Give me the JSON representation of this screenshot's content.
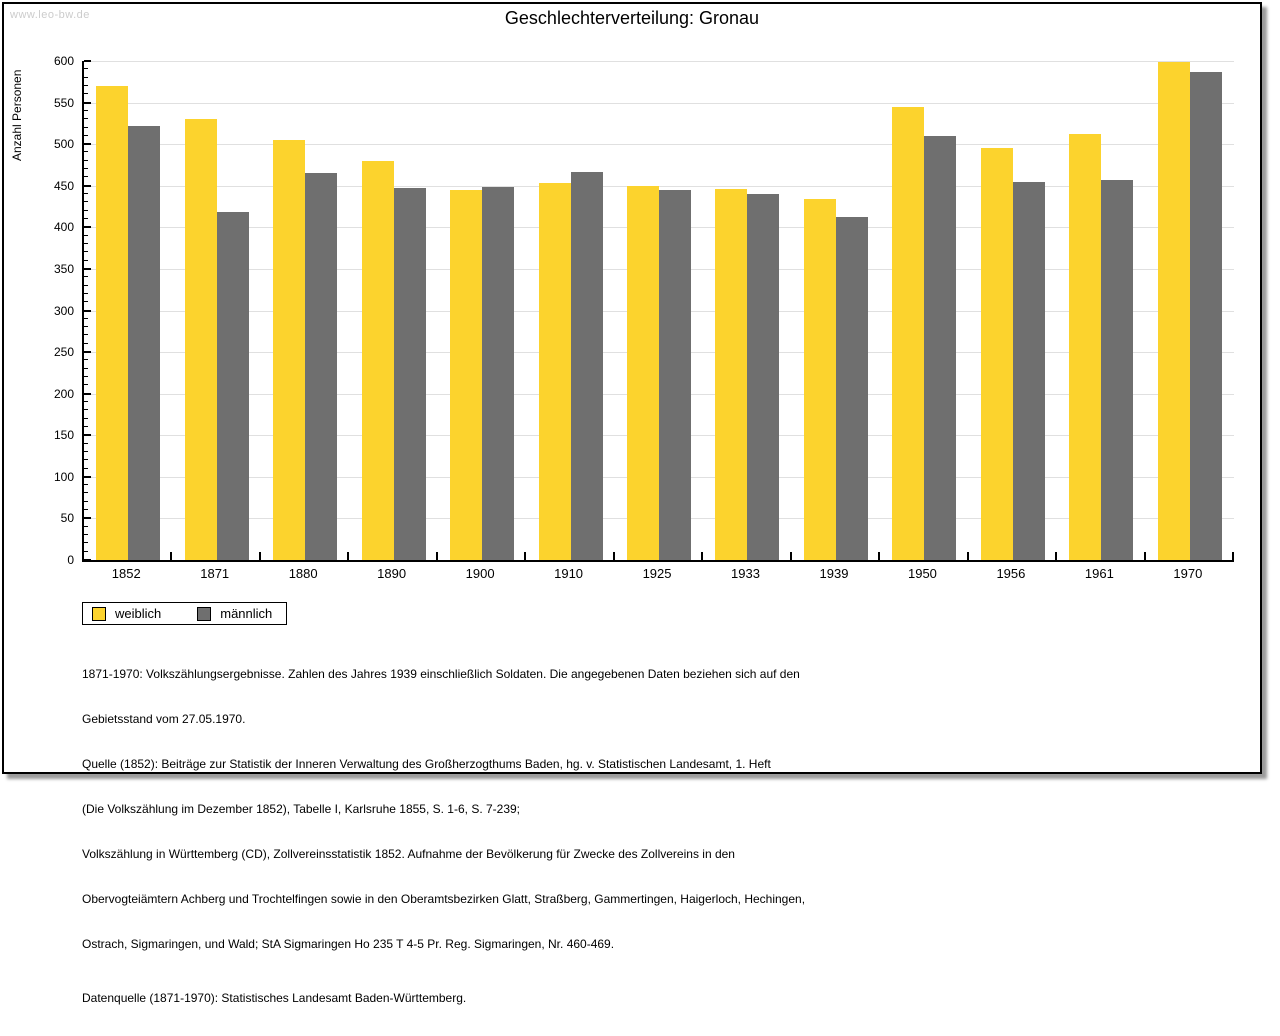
{
  "watermark": "www.leo-bw.de",
  "chart_data": {
    "type": "bar",
    "title": "Geschlechterverteilung: Gronau",
    "ylabel": "Anzahl Personen",
    "ylim": [
      0,
      600
    ],
    "ytick_step": 50,
    "ytick_minor_step": 10,
    "grid": true,
    "legend_position": "bottom-left",
    "categories": [
      "1852",
      "1871",
      "1880",
      "1890",
      "1900",
      "1910",
      "1925",
      "1933",
      "1939",
      "1950",
      "1956",
      "1961",
      "1970"
    ],
    "series": [
      {
        "name": "weiblich",
        "color": "#fcd32d",
        "values": [
          570,
          530,
          505,
          480,
          445,
          453,
          450,
          446,
          434,
          545,
          495,
          512,
          599
        ]
      },
      {
        "name": "männlich",
        "color": "#6f6f6f",
        "values": [
          522,
          418,
          465,
          447,
          448,
          467,
          445,
          440,
          412,
          510,
          454,
          457,
          587
        ]
      }
    ]
  },
  "footer": {
    "lines": [
      "1871-1970: Volkszählungsergebnisse. Zahlen des Jahres 1939 einschließlich Soldaten. Die angegebenen Daten beziehen sich auf den",
      "Gebietsstand vom 27.05.1970.",
      "Quelle (1852): Beiträge zur Statistik der Inneren Verwaltung des Großherzogthums Baden, hg. v. Statistischen Landesamt, 1. Heft",
      "(Die Volkszählung im Dezember 1852), Tabelle I, Karlsruhe 1855, S. 1-6, S. 7-239;",
      "Volkszählung in Württemberg (CD), Zollvereinsstatistik 1852. Aufnahme der Bevölkerung für Zwecke des Zollvereins in den",
      "Obervogteiämtern Achberg und Trochtelfingen sowie in den Oberamtsbezirken Glatt, Straßberg, Gammertingen, Haigerloch, Hechingen,",
      "Ostrach, Sigmaringen, und Wald; StA Sigmaringen Ho 235 T 4-5 Pr. Reg. Sigmaringen, Nr. 460-469."
    ],
    "datasource": "Datenquelle (1871-1970): Statistisches Landesamt Baden-Württemberg."
  }
}
